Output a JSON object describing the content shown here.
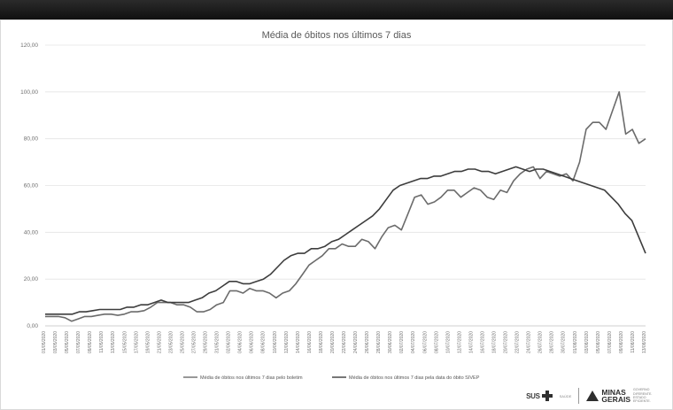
{
  "chart_data": {
    "type": "line",
    "title": "Média de óbitos nos últimos 7 dias",
    "ylim": [
      0,
      120
    ],
    "yticks": [
      "0,00",
      "20,00",
      "40,00",
      "60,00",
      "80,00",
      "100,00",
      "120,00"
    ],
    "xticks": [
      "01/05/2020",
      "03/05/2020",
      "05/05/2020",
      "07/05/2020",
      "09/05/2020",
      "11/05/2020",
      "13/05/2020",
      "15/05/2020",
      "17/05/2020",
      "19/05/2020",
      "21/05/2020",
      "23/05/2020",
      "25/05/2020",
      "27/05/2020",
      "29/05/2020",
      "31/05/2020",
      "02/06/2020",
      "04/06/2020",
      "06/06/2020",
      "08/06/2020",
      "10/06/2020",
      "12/06/2020",
      "14/06/2020",
      "16/06/2020",
      "18/06/2020",
      "20/06/2020",
      "22/06/2020",
      "24/06/2020",
      "26/06/2020",
      "28/06/2020",
      "30/06/2020",
      "02/07/2020",
      "04/07/2020",
      "06/07/2020",
      "08/07/2020",
      "10/07/2020",
      "12/07/2020",
      "14/07/2020",
      "16/07/2020",
      "18/07/2020",
      "20/07/2020",
      "22/07/2020",
      "24/07/2020",
      "26/07/2020",
      "28/07/2020",
      "30/07/2020",
      "01/08/2020",
      "03/08/2020",
      "05/08/2020",
      "07/08/2020",
      "09/08/2020",
      "11/08/2020",
      "13/08/2020"
    ],
    "legend_position": "bottom",
    "grid": "horizontal",
    "series": [
      {
        "name": "Média de óbitos nos últimos 7 dias pelo boletim",
        "color": "#6b6b6b",
        "values": [
          4,
          4,
          4,
          3.5,
          2,
          3,
          4,
          4,
          4.5,
          5,
          5,
          4.5,
          5,
          6,
          6,
          6.5,
          8,
          10,
          10,
          10,
          9,
          9,
          8,
          6,
          6,
          7,
          9,
          10,
          15,
          15,
          14,
          16,
          15,
          15,
          14,
          12,
          14,
          15,
          18,
          22,
          26,
          28,
          30,
          33,
          33,
          35,
          34,
          34,
          37,
          36,
          33,
          38,
          42,
          43,
          41,
          48,
          55,
          56,
          52,
          53,
          55,
          58,
          58,
          55,
          57,
          59,
          58,
          55,
          54,
          58,
          57,
          62,
          65,
          67,
          68,
          63,
          66,
          65,
          64,
          65,
          62,
          70,
          84,
          87,
          87,
          84,
          92,
          100,
          82,
          84,
          78,
          80
        ]
      },
      {
        "name": "Média de óbitos nos últimos 7 dias pela data do óbito SIVEP",
        "color": "#3d3d3d",
        "values": [
          5,
          5,
          5,
          5,
          5,
          6,
          6,
          6.5,
          7,
          7,
          7,
          7,
          8,
          8,
          9,
          9,
          10,
          11,
          10,
          10,
          10,
          10,
          11,
          12,
          14,
          15,
          17,
          19,
          19,
          18,
          18,
          19,
          20,
          22,
          25,
          28,
          30,
          31,
          31,
          33,
          33,
          34,
          36,
          37,
          39,
          41,
          43,
          45,
          47,
          50,
          54,
          58,
          60,
          61,
          62,
          63,
          63,
          64,
          64,
          65,
          66,
          66,
          67,
          67,
          66,
          66,
          65,
          66,
          67,
          68,
          67,
          66,
          67,
          67,
          66,
          65,
          64,
          63,
          62,
          61,
          60,
          59,
          58,
          55,
          52,
          48,
          45,
          38,
          31
        ]
      }
    ]
  },
  "logos": {
    "sus": "SUS",
    "sus_small": "SAÚDE",
    "minas_line1": "MINAS",
    "minas_line2": "GERAIS",
    "minas_small": "GOVERNO DIFERENTE. ESTADO EFICIENTE."
  }
}
